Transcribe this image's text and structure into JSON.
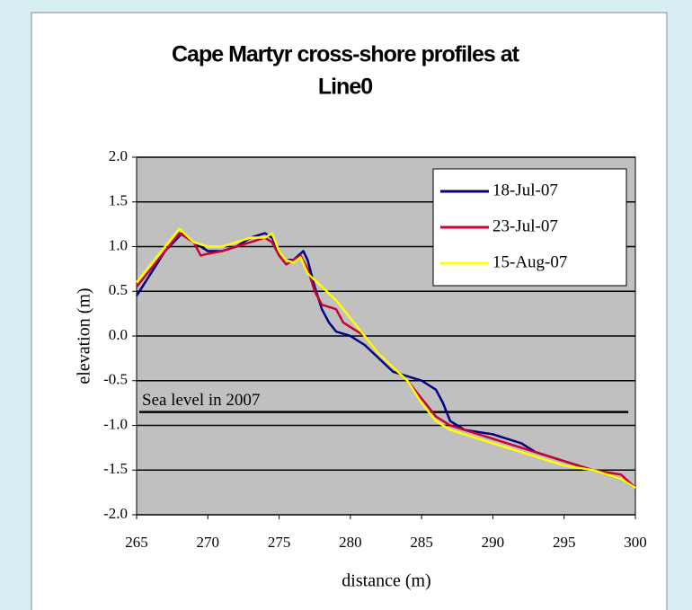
{
  "chart_data": {
    "type": "line",
    "title": "Cape Martyr cross-shore profiles at",
    "subtitle": "Line0",
    "x_label": "distance (m)",
    "y_label": "elevation (m)",
    "xlim": [
      265,
      300
    ],
    "xticks": [
      265,
      270,
      275,
      280,
      285,
      290,
      295,
      300
    ],
    "ylim": [
      -2,
      2
    ],
    "yticks": [
      {
        "value": 2,
        "label": "2.0"
      },
      1.5,
      {
        "value": 1,
        "label": "1.0"
      },
      0.5,
      {
        "value": 0,
        "label": "0.0"
      },
      -0.5,
      {
        "value": -1,
        "label": "-1.0"
      },
      -1.5,
      {
        "value": -2,
        "label": "-2.0"
      }
    ],
    "grid": true,
    "legend": "top-right",
    "plot_background": "#c0c0c0",
    "annotations": [
      {
        "text": "Sea level in 2007",
        "y": -0.85,
        "x": [
          265,
          299.5
        ],
        "color": "#000000"
      }
    ],
    "series": [
      {
        "name": "18-Jul-07",
        "color": "#000080",
        "x": [
          265,
          266,
          267,
          268.2,
          269,
          270,
          271,
          272,
          273,
          274,
          274.5,
          275,
          275.5,
          276,
          276.7,
          277,
          277.5,
          278,
          278.5,
          279,
          280,
          281,
          282,
          283,
          284,
          285,
          286,
          286.5,
          287,
          288,
          290,
          292,
          293,
          295,
          297,
          299,
          300
        ],
        "values": [
          0.45,
          0.7,
          0.95,
          1.15,
          1.05,
          0.95,
          0.95,
          1.0,
          1.1,
          1.15,
          1.1,
          0.95,
          0.85,
          0.85,
          0.95,
          0.85,
          0.55,
          0.3,
          0.15,
          0.05,
          0.0,
          -0.1,
          -0.25,
          -0.4,
          -0.45,
          -0.5,
          -0.6,
          -0.75,
          -0.95,
          -1.05,
          -1.1,
          -1.2,
          -1.3,
          -1.4,
          -1.5,
          -1.6,
          -1.7
        ]
      },
      {
        "name": "23-Jul-07",
        "color": "#cc0033",
        "x": [
          265,
          266,
          267,
          268,
          269,
          269.5,
          270,
          271,
          272,
          273,
          274,
          274.5,
          275,
          275.5,
          276,
          276.5,
          277,
          277.5,
          278,
          279,
          279.5,
          280,
          281,
          282,
          283,
          284,
          285,
          286,
          287,
          289,
          291,
          293,
          295,
          297,
          299,
          300
        ],
        "values": [
          0.55,
          0.75,
          0.95,
          1.15,
          1.05,
          0.9,
          0.92,
          0.95,
          1.0,
          1.05,
          1.1,
          1.05,
          0.9,
          0.8,
          0.85,
          0.9,
          0.75,
          0.5,
          0.35,
          0.3,
          0.15,
          0.1,
          0.0,
          -0.2,
          -0.35,
          -0.5,
          -0.7,
          -0.9,
          -1.0,
          -1.1,
          -1.2,
          -1.3,
          -1.4,
          -1.5,
          -1.55,
          -1.7
        ]
      },
      {
        "name": "15-Aug-07",
        "color": "#ffff00",
        "x": [
          265,
          266,
          267,
          268,
          269,
          270,
          271,
          272,
          273,
          274,
          274.5,
          275,
          275.5,
          276,
          276.5,
          277,
          278,
          279,
          280,
          281,
          282,
          283,
          284,
          285,
          286,
          287,
          289,
          291,
          293,
          295,
          297,
          299,
          300
        ],
        "values": [
          0.6,
          0.8,
          1.0,
          1.2,
          1.05,
          1.0,
          1.0,
          1.05,
          1.1,
          1.1,
          1.15,
          0.95,
          0.85,
          0.82,
          0.88,
          0.7,
          0.55,
          0.4,
          0.2,
          0.0,
          -0.2,
          -0.35,
          -0.5,
          -0.75,
          -0.95,
          -1.05,
          -1.15,
          -1.25,
          -1.35,
          -1.45,
          -1.5,
          -1.6,
          -1.7
        ]
      }
    ]
  }
}
